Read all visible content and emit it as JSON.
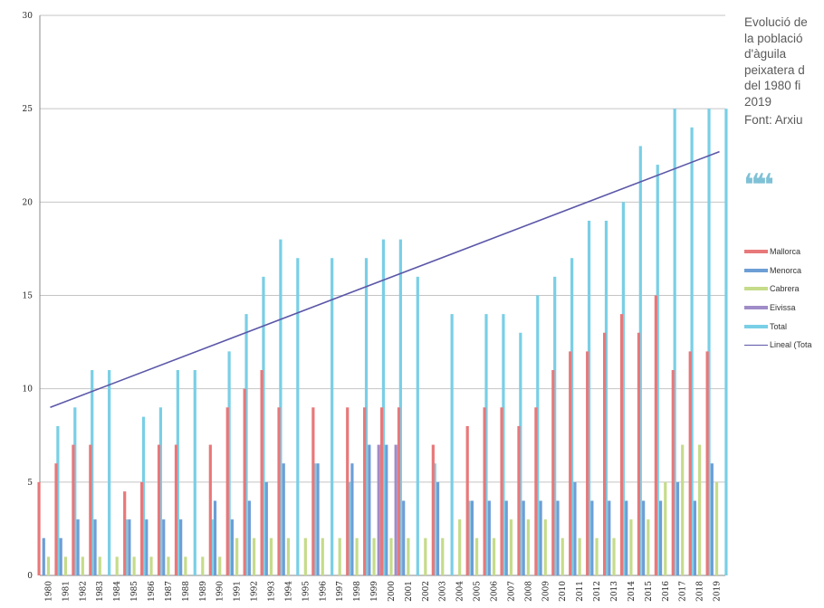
{
  "caption": {
    "title_lines": [
      "Evolució de",
      "la població",
      "d'àguila",
      "peixatera d",
      "del 1980 fi",
      "2019"
    ],
    "source": "Font: Arxiu"
  },
  "quote_mark": "❝❝",
  "legend": [
    {
      "label": "Mallorca",
      "color": "#e8787a",
      "style": "bar"
    },
    {
      "label": "Menorca",
      "color": "#6d9ed6",
      "style": "bar"
    },
    {
      "label": "Cabrera",
      "color": "#c5dc8a",
      "style": "bar"
    },
    {
      "label": "Eivissa",
      "color": "#a08cc8",
      "style": "bar"
    },
    {
      "label": "Total",
      "color": "#79cfe6",
      "style": "bar"
    },
    {
      "label": "Lineal (Tota",
      "color": "#5b57a8",
      "style": "line"
    }
  ],
  "chart_data": {
    "type": "bar",
    "categories": [
      "1980",
      "1981",
      "1982",
      "1983",
      "1984",
      "1985",
      "1986",
      "1987",
      "1988",
      "1989",
      "1990",
      "1991",
      "1992",
      "1993",
      "1994",
      "1995",
      "1996",
      "1997",
      "1998",
      "1999",
      "2000",
      "2001",
      "2002",
      "2003",
      "2004",
      "2005",
      "2006",
      "2007",
      "2008",
      "2009",
      "2010",
      "2011",
      "2012",
      "2013",
      "2014",
      "2015",
      "2016",
      "2017",
      "2018",
      "2019"
    ],
    "series": [
      {
        "name": "Mallorca",
        "color": "#e8787a",
        "values": [
          5,
          6,
          7,
          7,
          0,
          4.5,
          5,
          7,
          7,
          0,
          7,
          9,
          10,
          11,
          9,
          0,
          9,
          0,
          9,
          9,
          9,
          9,
          0,
          7,
          0,
          8,
          9,
          9,
          8,
          9,
          11,
          12,
          12,
          13,
          14,
          13,
          15,
          11,
          12,
          12
        ]
      },
      {
        "name": "Menorca",
        "color": "#6d9ed6",
        "values": [
          2,
          2,
          3,
          3,
          0,
          3,
          3,
          3,
          3,
          0,
          4,
          3,
          4,
          5,
          6,
          0,
          6,
          0,
          6,
          7,
          7,
          4,
          0,
          5,
          0,
          4,
          4,
          4,
          4,
          4,
          4,
          5,
          4,
          4,
          4,
          4,
          4,
          5,
          4,
          6
        ]
      },
      {
        "name": "Cabrera",
        "color": "#c5dc8a",
        "values": [
          1,
          1,
          1,
          1,
          1,
          1,
          1,
          1,
          1,
          1,
          1,
          2,
          2,
          2,
          2,
          2,
          2,
          2,
          2,
          2,
          2,
          2,
          2,
          2,
          3,
          2,
          2,
          3,
          3,
          3,
          2,
          2,
          2,
          2,
          3,
          3,
          5,
          7,
          7,
          5
        ]
      },
      {
        "name": "Eivissa",
        "color": "#a08cc8",
        "values": [
          0,
          0,
          0,
          0,
          0,
          0,
          0,
          0,
          0,
          0,
          0,
          0,
          0,
          0,
          0,
          0,
          0,
          0,
          0,
          7,
          7,
          0,
          0,
          0,
          0,
          0,
          0,
          0,
          0,
          0,
          0,
          0,
          0,
          0,
          0,
          0,
          0,
          0,
          0,
          0
        ]
      },
      {
        "name": "Total",
        "color": "#79cfe6",
        "values": [
          8,
          9,
          11,
          11,
          3,
          8.5,
          9,
          11,
          11,
          3,
          12,
          14,
          16,
          18,
          17,
          6,
          17,
          5,
          17,
          18,
          18,
          16,
          6,
          14,
          4,
          14,
          14,
          13,
          15,
          16,
          17,
          19,
          19,
          20,
          23,
          22,
          25,
          24,
          25,
          25
        ]
      }
    ],
    "trendline": {
      "name": "Lineal (Tota",
      "color": "#5b57a8",
      "start": 9,
      "end": 22.7
    },
    "ylim": [
      0,
      30
    ],
    "yticks": [
      0,
      5,
      10,
      15,
      20,
      25,
      30
    ],
    "grid": true,
    "legend_position": "right"
  }
}
